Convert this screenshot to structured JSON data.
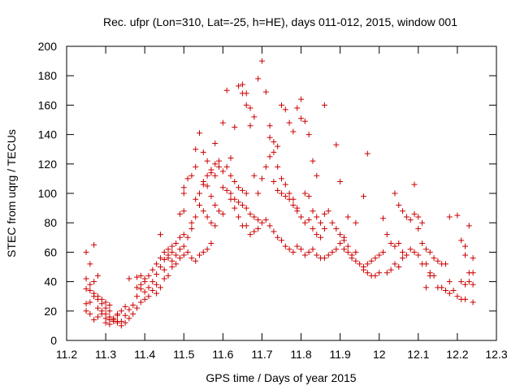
{
  "chart_data": {
    "type": "scatter",
    "title": "Rec. ufpr (Lon=310, Lat=-25, h=HE), days 011-012, 2015, window 001",
    "xlabel": "GPS time / Days of year 2015",
    "ylabel": "STEC from uqrg / TECUs",
    "xlim": [
      11.2,
      12.3
    ],
    "ylim": [
      0,
      200
    ],
    "xticks": [
      "11.2",
      "11.3",
      "11.4",
      "11.5",
      "11.6",
      "11.7",
      "11.8",
      "11.9",
      "12",
      "12.1",
      "12.2",
      "12.3"
    ],
    "yticks": [
      "0",
      "20",
      "40",
      "60",
      "80",
      "100",
      "120",
      "140",
      "160",
      "180",
      "200"
    ],
    "grid": false,
    "marker": "plus",
    "color": "#cc0000",
    "points": [
      [
        11.25,
        60
      ],
      [
        11.26,
        52
      ],
      [
        11.27,
        65
      ],
      [
        11.25,
        42
      ],
      [
        11.26,
        38
      ],
      [
        11.25,
        35
      ],
      [
        11.27,
        40
      ],
      [
        11.28,
        44
      ],
      [
        11.27,
        30
      ],
      [
        11.26,
        26
      ],
      [
        11.25,
        25
      ],
      [
        11.28,
        28
      ],
      [
        11.29,
        25
      ],
      [
        11.3,
        22
      ],
      [
        11.31,
        20
      ],
      [
        11.29,
        18
      ],
      [
        11.3,
        15
      ],
      [
        11.28,
        16
      ],
      [
        11.27,
        14
      ],
      [
        11.25,
        20
      ],
      [
        11.26,
        18
      ],
      [
        11.31,
        14
      ],
      [
        11.32,
        13
      ],
      [
        11.33,
        12
      ],
      [
        11.34,
        10
      ],
      [
        11.35,
        12
      ],
      [
        11.3,
        12
      ],
      [
        11.31,
        11
      ],
      [
        11.32,
        15
      ],
      [
        11.33,
        17
      ],
      [
        11.34,
        20
      ],
      [
        11.35,
        23
      ],
      [
        11.36,
        21
      ],
      [
        11.37,
        18
      ],
      [
        11.36,
        15
      ],
      [
        11.34,
        13
      ],
      [
        11.33,
        18
      ],
      [
        11.35,
        17
      ],
      [
        11.38,
        22
      ],
      [
        11.39,
        26
      ],
      [
        11.4,
        28
      ],
      [
        11.41,
        30
      ],
      [
        11.4,
        33
      ],
      [
        11.39,
        35
      ],
      [
        11.38,
        30
      ],
      [
        11.37,
        24
      ],
      [
        11.36,
        42
      ],
      [
        11.38,
        43
      ],
      [
        11.39,
        44
      ],
      [
        11.4,
        42
      ],
      [
        11.41,
        44
      ],
      [
        11.42,
        40
      ],
      [
        11.43,
        38
      ],
      [
        11.44,
        36
      ],
      [
        11.45,
        42
      ],
      [
        11.43,
        45
      ],
      [
        11.44,
        50
      ],
      [
        11.45,
        55
      ],
      [
        11.46,
        58
      ],
      [
        11.47,
        60
      ],
      [
        11.46,
        62
      ],
      [
        11.44,
        72
      ],
      [
        11.45,
        48
      ],
      [
        11.46,
        44
      ],
      [
        11.47,
        50
      ],
      [
        11.48,
        52
      ],
      [
        11.49,
        56
      ],
      [
        11.5,
        58
      ],
      [
        11.47,
        64
      ],
      [
        11.48,
        66
      ],
      [
        11.49,
        70
      ],
      [
        11.5,
        72
      ],
      [
        11.51,
        70
      ],
      [
        11.52,
        76
      ],
      [
        11.49,
        86
      ],
      [
        11.5,
        88
      ],
      [
        11.5,
        100
      ],
      [
        11.5,
        104
      ],
      [
        11.51,
        110
      ],
      [
        11.52,
        112
      ],
      [
        11.53,
        118
      ],
      [
        11.53,
        130
      ],
      [
        11.54,
        141
      ],
      [
        11.55,
        128
      ],
      [
        11.56,
        122
      ],
      [
        11.57,
        116
      ],
      [
        11.58,
        112
      ],
      [
        11.55,
        108
      ],
      [
        11.56,
        105
      ],
      [
        11.57,
        98
      ],
      [
        11.58,
        92
      ],
      [
        11.59,
        88
      ],
      [
        11.6,
        86
      ],
      [
        11.58,
        120
      ],
      [
        11.59,
        118
      ],
      [
        11.6,
        115
      ],
      [
        11.61,
        118
      ],
      [
        11.62,
        112
      ],
      [
        11.63,
        108
      ],
      [
        11.64,
        104
      ],
      [
        11.65,
        102
      ],
      [
        11.66,
        100
      ],
      [
        11.58,
        134
      ],
      [
        11.59,
        122
      ],
      [
        11.6,
        148
      ],
      [
        11.62,
        124
      ],
      [
        11.61,
        170
      ],
      [
        11.64,
        173
      ],
      [
        11.65,
        174
      ],
      [
        11.66,
        160
      ],
      [
        11.67,
        158
      ],
      [
        11.68,
        152
      ],
      [
        11.66,
        168
      ],
      [
        11.65,
        168
      ],
      [
        11.67,
        146
      ],
      [
        11.63,
        145
      ],
      [
        11.69,
        178
      ],
      [
        11.7,
        190
      ],
      [
        11.71,
        169
      ],
      [
        11.72,
        146
      ],
      [
        11.73,
        135
      ],
      [
        11.74,
        132
      ],
      [
        11.75,
        160
      ],
      [
        11.76,
        157
      ],
      [
        11.77,
        148
      ],
      [
        11.78,
        142
      ],
      [
        11.79,
        158
      ],
      [
        11.8,
        164
      ],
      [
        11.8,
        151
      ],
      [
        11.81,
        149
      ],
      [
        11.82,
        140
      ],
      [
        11.83,
        122
      ],
      [
        11.84,
        112
      ],
      [
        11.86,
        160
      ],
      [
        11.89,
        133
      ],
      [
        11.9,
        108
      ],
      [
        11.68,
        112
      ],
      [
        11.69,
        100
      ],
      [
        11.7,
        110
      ],
      [
        11.71,
        118
      ],
      [
        11.72,
        125
      ],
      [
        11.73,
        108
      ],
      [
        11.74,
        102
      ],
      [
        11.75,
        100
      ],
      [
        11.76,
        98
      ],
      [
        11.77,
        96
      ],
      [
        11.78,
        92
      ],
      [
        11.79,
        88
      ],
      [
        11.8,
        84
      ],
      [
        11.81,
        80
      ],
      [
        11.82,
        82
      ],
      [
        11.83,
        76
      ],
      [
        11.84,
        72
      ],
      [
        11.85,
        70
      ],
      [
        11.86,
        86
      ],
      [
        11.87,
        88
      ],
      [
        11.88,
        80
      ],
      [
        11.89,
        76
      ],
      [
        11.9,
        72
      ],
      [
        11.91,
        68
      ],
      [
        11.66,
        78
      ],
      [
        11.67,
        72
      ],
      [
        11.68,
        74
      ],
      [
        11.69,
        76
      ],
      [
        11.7,
        80
      ],
      [
        11.71,
        82
      ],
      [
        11.72,
        78
      ],
      [
        11.73,
        74
      ],
      [
        11.74,
        70
      ],
      [
        11.75,
        68
      ],
      [
        11.76,
        64
      ],
      [
        11.77,
        62
      ],
      [
        11.78,
        60
      ],
      [
        11.79,
        64
      ],
      [
        11.8,
        62
      ],
      [
        11.81,
        58
      ],
      [
        11.82,
        60
      ],
      [
        11.83,
        62
      ],
      [
        11.84,
        58
      ],
      [
        11.85,
        56
      ],
      [
        11.86,
        56
      ],
      [
        11.87,
        58
      ],
      [
        11.88,
        60
      ],
      [
        11.89,
        62
      ],
      [
        11.9,
        66
      ],
      [
        11.91,
        62
      ],
      [
        11.92,
        60
      ],
      [
        11.93,
        56
      ],
      [
        11.94,
        54
      ],
      [
        11.95,
        52
      ],
      [
        11.96,
        48
      ],
      [
        11.97,
        46
      ],
      [
        11.98,
        44
      ],
      [
        11.99,
        44
      ],
      [
        12.0,
        46
      ],
      [
        11.92,
        84
      ],
      [
        11.94,
        80
      ],
      [
        11.96,
        98
      ],
      [
        11.97,
        127
      ],
      [
        12.01,
        83
      ],
      [
        12.02,
        72
      ],
      [
        12.03,
        66
      ],
      [
        12.04,
        64
      ],
      [
        12.05,
        66
      ],
      [
        12.06,
        60
      ],
      [
        12.04,
        100
      ],
      [
        12.05,
        92
      ],
      [
        12.06,
        88
      ],
      [
        12.07,
        84
      ],
      [
        12.08,
        82
      ],
      [
        12.09,
        106
      ],
      [
        12.09,
        86
      ],
      [
        12.1,
        84
      ],
      [
        12.11,
        80
      ],
      [
        12.1,
        76
      ],
      [
        12.11,
        66
      ],
      [
        12.12,
        62
      ],
      [
        12.13,
        60
      ],
      [
        12.12,
        52
      ],
      [
        12.14,
        56
      ],
      [
        12.15,
        54
      ],
      [
        12.16,
        52
      ],
      [
        12.17,
        52
      ],
      [
        12.18,
        40
      ],
      [
        12.18,
        84
      ],
      [
        12.2,
        85
      ],
      [
        12.21,
        68
      ],
      [
        12.22,
        64
      ],
      [
        12.23,
        78
      ],
      [
        12.22,
        58
      ],
      [
        12.24,
        56
      ],
      [
        12.23,
        46
      ],
      [
        12.24,
        46
      ],
      [
        12.21,
        40
      ],
      [
        12.22,
        38
      ],
      [
        12.23,
        40
      ],
      [
        12.24,
        38
      ],
      [
        12.2,
        30
      ],
      [
        12.21,
        28
      ],
      [
        12.22,
        28
      ],
      [
        12.24,
        26
      ],
      [
        12.19,
        34
      ],
      [
        12.18,
        32
      ],
      [
        12.17,
        34
      ],
      [
        12.16,
        36
      ],
      [
        12.15,
        36
      ],
      [
        12.13,
        44
      ],
      [
        12.12,
        36
      ],
      [
        12.02,
        46
      ],
      [
        12.03,
        48
      ],
      [
        12.04,
        52
      ],
      [
        12.05,
        50
      ],
      [
        12.06,
        56
      ],
      [
        12.07,
        58
      ],
      [
        12.08,
        62
      ],
      [
        12.09,
        60
      ],
      [
        12.1,
        58
      ],
      [
        12.11,
        52
      ],
      [
        12.13,
        46
      ],
      [
        12.14,
        44
      ],
      [
        11.96,
        50
      ],
      [
        11.97,
        52
      ],
      [
        11.98,
        54
      ],
      [
        11.99,
        56
      ],
      [
        12.0,
        58
      ],
      [
        12.01,
        60
      ],
      [
        11.93,
        58
      ],
      [
        11.94,
        60
      ],
      [
        11.92,
        64
      ],
      [
        11.91,
        70
      ],
      [
        11.53,
        96
      ],
      [
        11.54,
        92
      ],
      [
        11.55,
        88
      ],
      [
        11.56,
        84
      ],
      [
        11.57,
        80
      ],
      [
        11.58,
        78
      ],
      [
        11.52,
        80
      ],
      [
        11.53,
        84
      ],
      [
        11.54,
        100
      ],
      [
        11.55,
        106
      ],
      [
        11.56,
        112
      ],
      [
        11.57,
        114
      ],
      [
        11.62,
        100
      ],
      [
        11.63,
        96
      ],
      [
        11.64,
        94
      ],
      [
        11.65,
        92
      ],
      [
        11.66,
        90
      ],
      [
        11.67,
        86
      ],
      [
        11.68,
        84
      ],
      [
        11.69,
        82
      ],
      [
        11.6,
        104
      ],
      [
        11.61,
        102
      ],
      [
        11.62,
        96
      ],
      [
        11.63,
        90
      ],
      [
        11.64,
        84
      ],
      [
        11.65,
        78
      ],
      [
        11.72,
        138
      ],
      [
        11.73,
        128
      ],
      [
        11.74,
        118
      ],
      [
        11.75,
        110
      ],
      [
        11.76,
        106
      ],
      [
        11.77,
        100
      ],
      [
        11.78,
        96
      ],
      [
        11.79,
        90
      ],
      [
        11.81,
        100
      ],
      [
        11.82,
        98
      ],
      [
        11.83,
        88
      ],
      [
        11.84,
        84
      ],
      [
        11.85,
        80
      ],
      [
        11.86,
        76
      ],
      [
        11.48,
        58
      ],
      [
        11.49,
        62
      ],
      [
        11.5,
        64
      ],
      [
        11.51,
        60
      ],
      [
        11.52,
        56
      ],
      [
        11.53,
        54
      ],
      [
        11.54,
        58
      ],
      [
        11.55,
        60
      ],
      [
        11.56,
        62
      ],
      [
        11.57,
        66
      ],
      [
        11.42,
        48
      ],
      [
        11.43,
        52
      ],
      [
        11.44,
        56
      ],
      [
        11.45,
        60
      ],
      [
        11.46,
        56
      ],
      [
        11.47,
        54
      ],
      [
        11.38,
        36
      ],
      [
        11.39,
        38
      ],
      [
        11.4,
        40
      ],
      [
        11.41,
        36
      ],
      [
        11.42,
        34
      ],
      [
        11.43,
        32
      ],
      [
        11.28,
        22
      ],
      [
        11.29,
        20
      ],
      [
        11.3,
        18
      ],
      [
        11.31,
        16
      ],
      [
        11.32,
        14
      ],
      [
        11.33,
        13
      ],
      [
        11.26,
        34
      ],
      [
        11.27,
        32
      ],
      [
        11.28,
        30
      ],
      [
        11.29,
        28
      ],
      [
        11.3,
        26
      ],
      [
        11.31,
        24
      ]
    ]
  }
}
